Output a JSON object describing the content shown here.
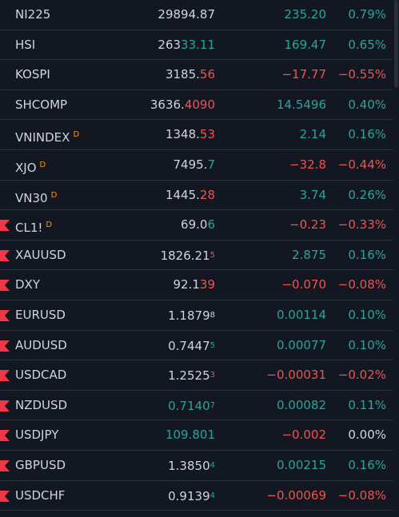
{
  "colors": {
    "positive": "#26a69a",
    "negative": "#ef5350",
    "neutral": "#d1d4dc",
    "flag": "#f23645",
    "delay_badge": "#ff9800"
  },
  "icons": {
    "flag": "flag-icon"
  },
  "rows": [
    {
      "symbol": "NI225",
      "badge": "",
      "flag": false,
      "last": {
        "main": "29894.87",
        "hl": "",
        "sup": ""
      },
      "last_dir": "neutral",
      "change": "235.20",
      "pct": "0.79%",
      "dir": "positive"
    },
    {
      "symbol": "HSI",
      "badge": "",
      "flag": false,
      "last": {
        "main": "263",
        "hl": "33.11",
        "sup": ""
      },
      "last_dir": "positive",
      "change": "169.47",
      "pct": "0.65%",
      "dir": "positive"
    },
    {
      "symbol": "KOSPI",
      "badge": "",
      "flag": false,
      "last": {
        "main": "3185.",
        "hl": "56",
        "sup": ""
      },
      "last_dir": "negative",
      "change": "−17.77",
      "pct": "−0.55%",
      "dir": "negative"
    },
    {
      "symbol": "SHCOMP",
      "badge": "",
      "flag": false,
      "last": {
        "main": "3636.",
        "hl": "4090",
        "sup": ""
      },
      "last_dir": "negative",
      "change": "14.5496",
      "pct": "0.40%",
      "dir": "positive"
    },
    {
      "symbol": "VNINDEX",
      "badge": "D",
      "flag": false,
      "last": {
        "main": "1348.",
        "hl": "53",
        "sup": ""
      },
      "last_dir": "negative",
      "change": "2.14",
      "pct": "0.16%",
      "dir": "positive"
    },
    {
      "symbol": "XJO",
      "badge": "D",
      "flag": false,
      "last": {
        "main": "7495.",
        "hl": "7",
        "sup": ""
      },
      "last_dir": "positive",
      "change": "−32.8",
      "pct": "−0.44%",
      "dir": "negative"
    },
    {
      "symbol": "VN30",
      "badge": "D",
      "flag": false,
      "last": {
        "main": "1445.",
        "hl": "28",
        "sup": ""
      },
      "last_dir": "negative",
      "change": "3.74",
      "pct": "0.26%",
      "dir": "positive"
    },
    {
      "symbol": "CL1!",
      "badge": "D",
      "flag": true,
      "last": {
        "main": "69.0",
        "hl": "6",
        "sup": ""
      },
      "last_dir": "positive",
      "change": "−0.23",
      "pct": "−0.33%",
      "dir": "negative"
    },
    {
      "symbol": "XAUUSD",
      "badge": "",
      "flag": true,
      "last": {
        "main": "1826.21",
        "hl": "",
        "sup": "5"
      },
      "last_dir": "negative",
      "change": "2.875",
      "pct": "0.16%",
      "dir": "positive"
    },
    {
      "symbol": "DXY",
      "badge": "",
      "flag": true,
      "last": {
        "main": "92.1",
        "hl": "39",
        "sup": ""
      },
      "last_dir": "negative",
      "change": "−0.070",
      "pct": "−0.08%",
      "dir": "negative"
    },
    {
      "symbol": "EURUSD",
      "badge": "",
      "flag": true,
      "last": {
        "main": "1.1879",
        "hl": "",
        "sup": "8"
      },
      "last_dir": "neutral",
      "change": "0.00114",
      "pct": "0.10%",
      "dir": "positive"
    },
    {
      "symbol": "AUDUSD",
      "badge": "",
      "flag": true,
      "last": {
        "main": "0.7447",
        "hl": "",
        "sup": "5"
      },
      "last_dir": "positive",
      "change": "0.00077",
      "pct": "0.10%",
      "dir": "positive"
    },
    {
      "symbol": "USDCAD",
      "badge": "",
      "flag": true,
      "last": {
        "main": "1.2525",
        "hl": "",
        "sup": "3"
      },
      "last_dir": "negative",
      "change": "−0.00031",
      "pct": "−0.02%",
      "dir": "negative"
    },
    {
      "symbol": "NZDUSD",
      "badge": "",
      "flag": true,
      "last": {
        "main": "0.7140",
        "hl": "",
        "sup": "7"
      },
      "last_dir": "positive",
      "whole_colored": true,
      "change": "0.00082",
      "pct": "0.11%",
      "dir": "positive"
    },
    {
      "symbol": "USDJPY",
      "badge": "",
      "flag": true,
      "last": {
        "main": "109.801",
        "hl": "",
        "sup": ""
      },
      "last_dir": "positive",
      "whole_colored": true,
      "change": "−0.002",
      "pct": "0.00%",
      "dir": "negative",
      "pct_dir": "neutral"
    },
    {
      "symbol": "GBPUSD",
      "badge": "",
      "flag": true,
      "last": {
        "main": "1.3850",
        "hl": "",
        "sup": "4"
      },
      "last_dir": "positive",
      "change": "0.00215",
      "pct": "0.16%",
      "dir": "positive"
    },
    {
      "symbol": "USDCHF",
      "badge": "",
      "flag": true,
      "last": {
        "main": "0.9139",
        "hl": "",
        "sup": "4"
      },
      "last_dir": "positive",
      "change": "−0.00069",
      "pct": "−0.08%",
      "dir": "negative"
    }
  ]
}
